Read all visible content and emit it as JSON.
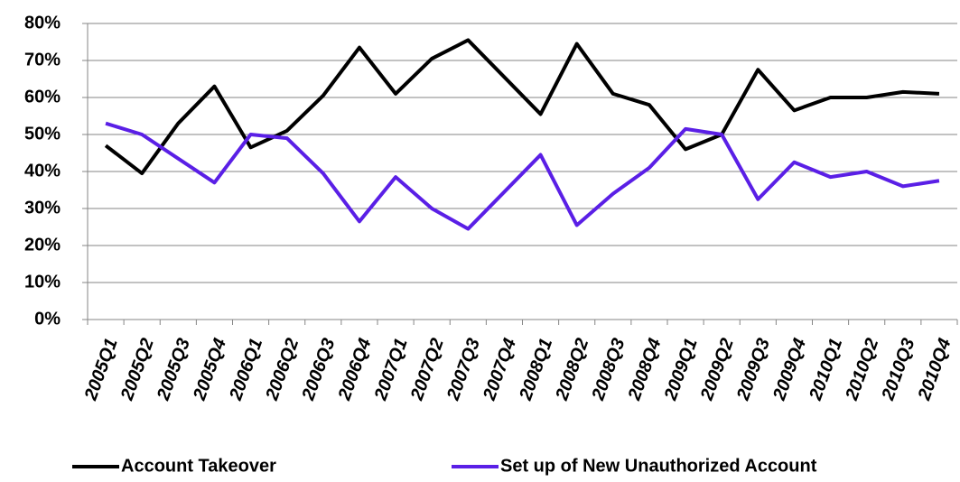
{
  "chart_data": {
    "type": "line",
    "categories": [
      "2005Q1",
      "2005Q2",
      "2005Q3",
      "2005Q4",
      "2006Q1",
      "2006Q2",
      "2006Q3",
      "2006Q4",
      "2007Q1",
      "2007Q2",
      "2007Q3",
      "2007Q4",
      "2008Q1",
      "2008Q2",
      "2008Q3",
      "2008Q4",
      "2009Q1",
      "2009Q2",
      "2009Q3",
      "2009Q4",
      "2010Q1",
      "2010Q2",
      "2010Q3",
      "2010Q4"
    ],
    "series": [
      {
        "name": "Account Takeover",
        "color": "#000000",
        "values": [
          47,
          39.5,
          53,
          63,
          46.5,
          51,
          60.5,
          73.5,
          61,
          70.5,
          75.5,
          65.5,
          55.5,
          74.5,
          61,
          58,
          46,
          50,
          67.5,
          56.5,
          60,
          60,
          61.5,
          61
        ]
      },
      {
        "name": "Set up of New Unauthorized Account",
        "color": "#5a1fe6",
        "values": [
          53,
          50,
          43.5,
          37,
          50,
          49,
          39.5,
          26.5,
          38.5,
          30,
          24.5,
          34.5,
          44.5,
          25.5,
          34,
          41,
          51.5,
          50,
          32.5,
          42.5,
          38.5,
          40,
          36,
          37.5
        ]
      }
    ],
    "ylim": [
      0,
      80
    ],
    "yticks": [
      {
        "value": 0,
        "label": "0%"
      },
      {
        "value": 10,
        "label": "10%"
      },
      {
        "value": 20,
        "label": "20%"
      },
      {
        "value": 30,
        "label": "30%"
      },
      {
        "value": 40,
        "label": "40%"
      },
      {
        "value": 50,
        "label": "50%"
      },
      {
        "value": 60,
        "label": "60%"
      },
      {
        "value": 70,
        "label": "70%"
      },
      {
        "value": 80,
        "label": "80%"
      }
    ],
    "grid": true,
    "legend": "bottom"
  }
}
